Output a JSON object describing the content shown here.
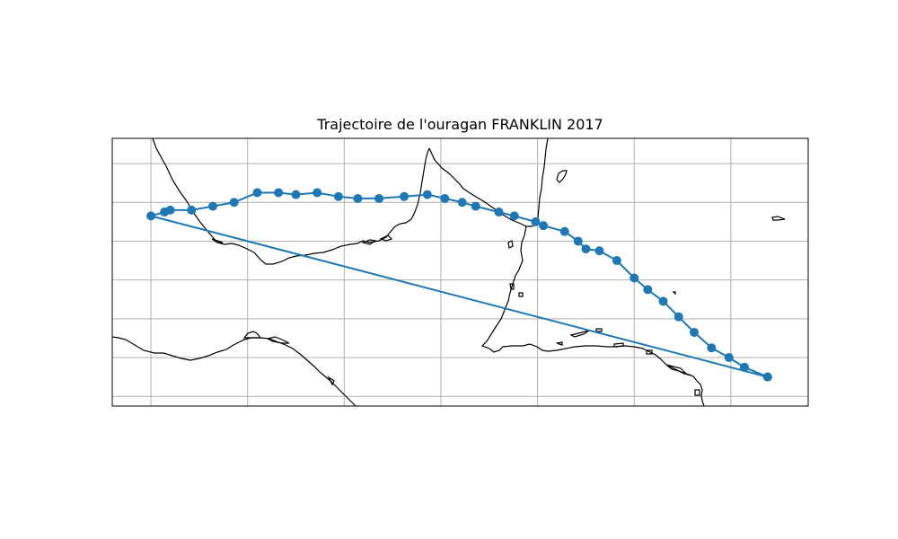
{
  "title": "Trajectoire de l'ouragan FRANKLIN 2017",
  "colors": {
    "track": "#1f77b4",
    "grid": "#b0b0b0",
    "coast": "#000000",
    "frame": "#000000"
  },
  "map": {
    "projection": "PlateCarree",
    "lon_range": [
      -101,
      -65
    ],
    "lat_range": [
      11.5,
      25.3
    ],
    "gridlines": true,
    "grid_lon": [
      -99,
      -94,
      -89,
      -84,
      -79,
      -74,
      -69
    ],
    "grid_lat": [
      12,
      14,
      16,
      18,
      20,
      22,
      24,
      26
    ]
  },
  "chart_data": {
    "type": "scatter",
    "title": "Trajectoire de l'ouragan FRANKLIN 2017",
    "series": [
      {
        "marker": "circle",
        "line": true,
        "lon": [
          -67.1,
          -68.3,
          -69.1,
          -70.0,
          -70.9,
          -71.7,
          -72.5,
          -73.3,
          -74.0,
          -74.9,
          -75.8,
          -76.5,
          -76.9,
          -77.6,
          -78.7,
          -79.1,
          -80.2,
          -81.0,
          -82.2,
          -82.9,
          -83.8,
          -84.7,
          -85.9,
          -87.2,
          -88.3,
          -89.3,
          -90.4,
          -91.5,
          -92.4,
          -93.5,
          -94.7,
          -95.8,
          -96.9,
          -98.0,
          -98.3,
          -99.0,
          -67.1
        ],
        "lat": [
          13.0,
          13.5,
          14.0,
          14.5,
          15.3,
          16.1,
          16.9,
          17.5,
          18.1,
          19.0,
          19.5,
          19.6,
          20.0,
          20.5,
          20.8,
          21.0,
          21.3,
          21.5,
          21.8,
          22.0,
          22.2,
          22.4,
          22.3,
          22.2,
          22.2,
          22.3,
          22.5,
          22.4,
          22.5,
          22.5,
          22.0,
          21.8,
          21.6,
          21.6,
          21.5,
          21.3,
          13.0
        ]
      }
    ]
  }
}
